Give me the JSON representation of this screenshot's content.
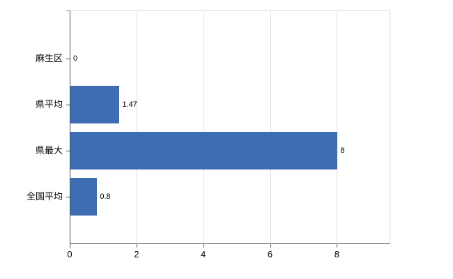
{
  "chart_data": {
    "type": "bar",
    "orientation": "horizontal",
    "title": "",
    "categories": [
      "麻生区",
      "県平均",
      "県最大",
      "全国平均"
    ],
    "values": [
      0,
      1.47,
      8,
      0.8
    ],
    "value_labels": [
      "0",
      "1.47",
      "8",
      "0.8"
    ],
    "x_ticks": [
      "0",
      "2",
      "4",
      "6",
      "8"
    ],
    "x_tick_values": [
      0,
      2,
      4,
      6,
      8
    ],
    "xlim": [
      0,
      9.6
    ],
    "grid": "vertical-gridlines",
    "legend": "none",
    "bar_color": "#3e6db3",
    "axis_color": "#4d4d4d",
    "grid_color": "#dcdcdc",
    "background_color": "#ffffff"
  }
}
